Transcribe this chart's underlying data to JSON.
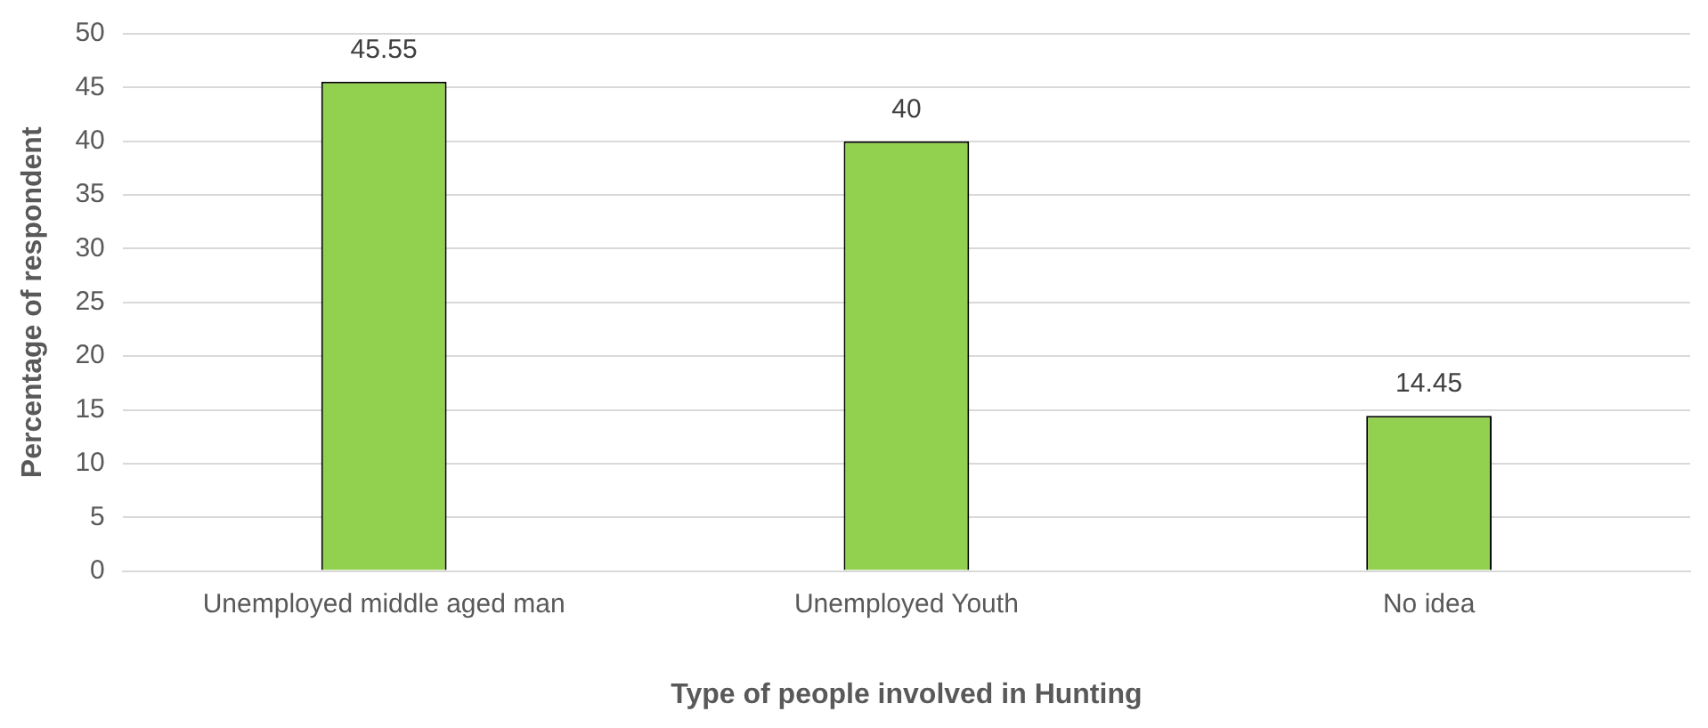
{
  "chart_data": {
    "type": "bar",
    "xlabel": "Type of people involved in Hunting",
    "ylabel": "Percentage of respondent",
    "categories": [
      "Unemployed middle aged man",
      "Unemployed Youth",
      "No idea"
    ],
    "values": [
      45.55,
      40,
      14.45
    ],
    "color": "#92d050",
    "ylim": [
      0,
      50
    ],
    "yticks": [
      0,
      5,
      10,
      15,
      20,
      25,
      30,
      35,
      40,
      45,
      50
    ],
    "grid": "y",
    "data_labels": true
  }
}
